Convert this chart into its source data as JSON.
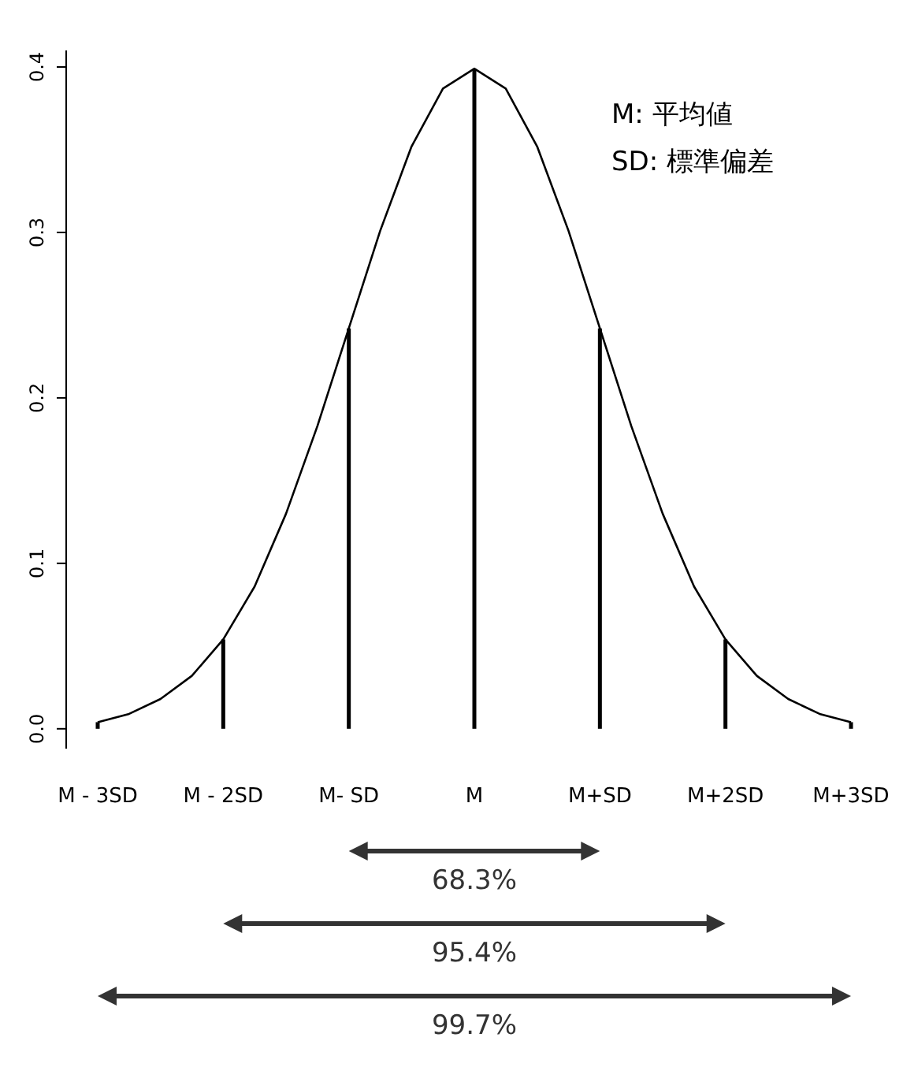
{
  "chart_data": {
    "type": "line",
    "xlim": [
      -3,
      3
    ],
    "ylim": [
      -0.012,
      0.41
    ],
    "xticks": [
      {
        "value": -3,
        "label": "M - 3SD"
      },
      {
        "value": -2,
        "label": "M - 2SD"
      },
      {
        "value": -1,
        "label": "M- SD"
      },
      {
        "value": 0,
        "label": "M"
      },
      {
        "value": 1,
        "label": "M+SD"
      },
      {
        "value": 2,
        "label": "M+2SD"
      },
      {
        "value": 3,
        "label": "M+3SD"
      }
    ],
    "yticks": [
      {
        "value": 0,
        "label": "0.0"
      },
      0.1,
      0.2,
      0.3,
      0.4
    ],
    "series": [
      {
        "color": "#000000",
        "x": [
          -3,
          -2.75,
          -2.5,
          -2.25,
          -2,
          -1.75,
          -1.5,
          -1.25,
          -1,
          -0.75,
          -0.5,
          -0.25,
          0,
          0.25,
          0.5,
          0.75,
          1,
          1.25,
          1.5,
          1.75,
          2,
          2.25,
          2.5,
          2.75,
          3
        ],
        "values": [
          0.004,
          0.009,
          0.018,
          0.032,
          0.054,
          0.086,
          0.13,
          0.183,
          0.242,
          0.301,
          0.352,
          0.387,
          0.399,
          0.387,
          0.352,
          0.301,
          0.242,
          0.183,
          0.13,
          0.086,
          0.054,
          0.032,
          0.018,
          0.009,
          0.004
        ]
      },
      {
        "type": "bar",
        "color": "#000000",
        "x": [
          -3,
          -2,
          -1,
          0,
          1,
          2,
          3
        ],
        "values": [
          0.004,
          0.054,
          0.242,
          0.399,
          0.242,
          0.054,
          0.004
        ]
      }
    ],
    "annotations": [
      "M: 平均値",
      "SD: 標準偏差",
      "68.3%",
      "95.4%",
      "99.7%"
    ]
  }
}
